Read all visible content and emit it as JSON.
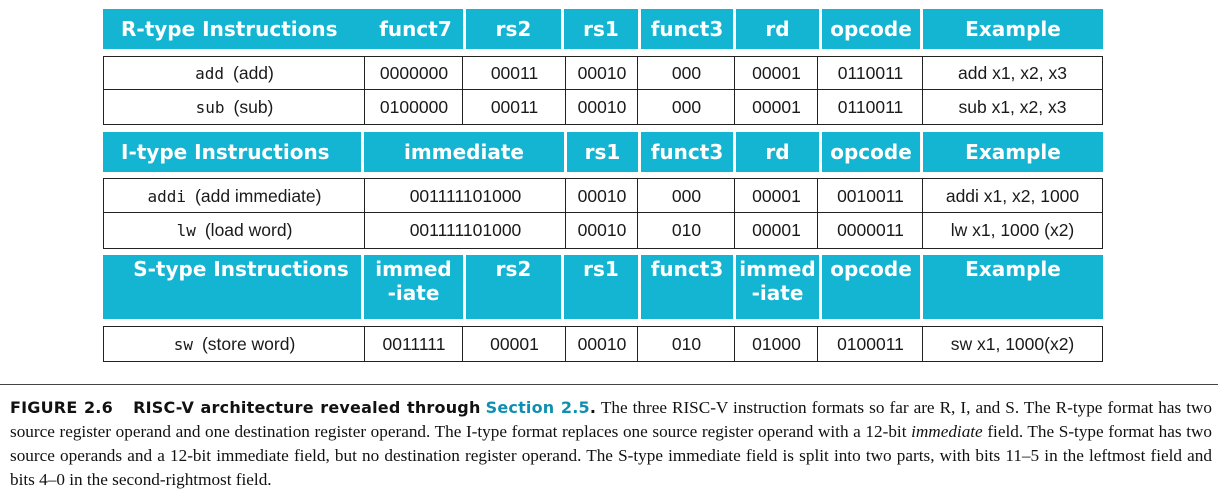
{
  "r_type": {
    "header": [
      "R-type Instructions",
      "funct7",
      "rs2",
      "rs1",
      "funct3",
      "rd",
      "opcode",
      "Example"
    ],
    "rows": [
      {
        "mnemonic": "add",
        "desc": "(add)",
        "funct7": "0000000",
        "rs2": "00011",
        "rs1": "00010",
        "funct3": "000",
        "rd": "00001",
        "opcode": "0110011",
        "example": "add x1, x2, x3"
      },
      {
        "mnemonic": "sub",
        "desc": "(sub)",
        "funct7": "0100000",
        "rs2": "00011",
        "rs1": "00010",
        "funct3": "000",
        "rd": "00001",
        "opcode": "0110011",
        "example": "sub x1, x2, x3"
      }
    ]
  },
  "i_type": {
    "header": [
      "I-type Instructions",
      "immediate",
      "rs1",
      "funct3",
      "rd",
      "opcode",
      "Example"
    ],
    "rows": [
      {
        "mnemonic": "addi",
        "desc": "(add immediate)",
        "immediate": "001111101000",
        "rs1": "00010",
        "funct3": "000",
        "rd": "00001",
        "opcode": "0010011",
        "example": "addi x1, x2, 1000"
      },
      {
        "mnemonic": "lw",
        "desc": "(load word)",
        "immediate": "001111101000",
        "rs1": "00010",
        "funct3": "010",
        "rd": "00001",
        "opcode": "0000011",
        "example": "lw x1, 1000 (x2)"
      }
    ]
  },
  "s_type": {
    "header": [
      "S-type Instructions",
      "immed",
      "-iate",
      "rs2",
      "rs1",
      "funct3",
      "immed",
      "-iate",
      "opcode",
      "Example"
    ],
    "rows": [
      {
        "mnemonic": "sw",
        "desc": "(store word)",
        "imm_hi": "0011111",
        "rs2": "00001",
        "rs1": "00010",
        "funct3": "010",
        "imm_lo": "01000",
        "opcode": "0100011",
        "example": "sw x1, 1000(x2)"
      }
    ]
  },
  "caption": {
    "label": "FIGURE 2.6",
    "title_prefix": "RISC-V architecture revealed through",
    "section": "Section 2.5",
    "period": ".",
    "p1": " The three RISC-V instruction formats so far are R, I, and S. The R-type format has two source register operand and one destination register operand. The I-type format replaces one source register operand with a 12-bit ",
    "p1_em": "immediate",
    "p2": " field. The S-type format has two source operands and a 12-bit immediate field, but no destination register operand. The S-type immediate field is split into two parts, with bits 11–5 in the leftmost field and bits 4–0 in the second-rightmost field."
  },
  "colors": {
    "header_bg": "#14b5d2",
    "header_text": "#ffffff",
    "section_link": "#1090b0"
  }
}
